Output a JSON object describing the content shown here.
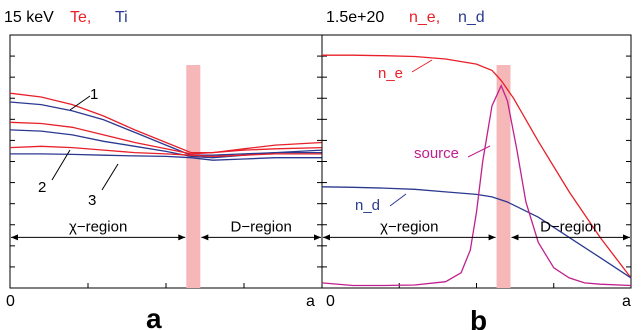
{
  "colors": {
    "te": "#e8202a",
    "ti": "#2b3990",
    "source": "#c0208f",
    "band": "#f5b7b7",
    "axis": "#000000"
  },
  "chart_data": [
    {
      "panel": "a",
      "type": "line",
      "header": {
        "scale": "15 keV",
        "te": "Te,",
        "ti": "Ti"
      },
      "x_ticks": [
        "0",
        "a"
      ],
      "xlim": [
        0,
        1
      ],
      "ylim": [
        0,
        1
      ],
      "band": [
        0.565,
        0.61
      ],
      "regions": {
        "left": "χ−region",
        "right": "D−region",
        "y": 0.2
      },
      "curve_labels": [
        "1",
        "2",
        "3"
      ],
      "series": [
        {
          "key": "Te",
          "color": "te",
          "x": [
            0,
            0.1,
            0.2,
            0.3,
            0.4,
            0.5,
            0.58,
            0.65,
            0.75,
            0.85,
            1.0
          ],
          "y": [
            0.77,
            0.755,
            0.725,
            0.68,
            0.625,
            0.575,
            0.535,
            0.535,
            0.545,
            0.55,
            0.555
          ]
        },
        {
          "key": "Ti",
          "color": "ti",
          "x": [
            0,
            0.1,
            0.2,
            0.3,
            0.4,
            0.5,
            0.58,
            0.65,
            0.75,
            0.85,
            1.0
          ],
          "y": [
            0.735,
            0.725,
            0.7,
            0.665,
            0.615,
            0.565,
            0.525,
            0.525,
            0.53,
            0.535,
            0.535
          ]
        },
        {
          "key": "Te",
          "color": "te",
          "x": [
            0,
            0.1,
            0.2,
            0.3,
            0.4,
            0.5,
            0.58,
            0.65,
            0.75,
            0.85,
            1.0
          ],
          "y": [
            0.655,
            0.65,
            0.635,
            0.605,
            0.575,
            0.55,
            0.53,
            0.535,
            0.55,
            0.565,
            0.575
          ]
        },
        {
          "key": "Ti",
          "color": "ti",
          "x": [
            0,
            0.1,
            0.2,
            0.3,
            0.4,
            0.5,
            0.58,
            0.65,
            0.75,
            0.85,
            1.0
          ],
          "y": [
            0.625,
            0.62,
            0.605,
            0.58,
            0.56,
            0.54,
            0.52,
            0.515,
            0.525,
            0.535,
            0.545
          ]
        },
        {
          "key": "Te",
          "color": "te",
          "x": [
            0,
            0.1,
            0.2,
            0.3,
            0.4,
            0.5,
            0.58,
            0.65,
            0.75,
            0.85,
            1.0
          ],
          "y": [
            0.555,
            0.56,
            0.555,
            0.545,
            0.535,
            0.53,
            0.525,
            0.52,
            0.525,
            0.53,
            0.53
          ]
        },
        {
          "key": "Ti",
          "color": "ti",
          "x": [
            0,
            0.1,
            0.2,
            0.3,
            0.4,
            0.5,
            0.58,
            0.65,
            0.75,
            0.85,
            1.0
          ],
          "y": [
            0.53,
            0.53,
            0.528,
            0.525,
            0.522,
            0.52,
            0.515,
            0.505,
            0.51,
            0.515,
            0.515
          ]
        }
      ]
    },
    {
      "panel": "b",
      "type": "line",
      "header": {
        "scale": "1.5e+20",
        "ne": "n_e,",
        "nd": "n_d"
      },
      "x_ticks": [
        "0",
        "a"
      ],
      "xlim": [
        0,
        1
      ],
      "ylim": [
        0,
        1
      ],
      "band": [
        0.565,
        0.61
      ],
      "regions": {
        "left": "χ−region",
        "right": "D−region",
        "y": 0.2
      },
      "curve_labels": {
        "ne": "n_e",
        "nd": "n_d",
        "source": "source"
      },
      "series": [
        {
          "key": "n_e",
          "color": "te",
          "x": [
            0,
            0.1,
            0.2,
            0.3,
            0.4,
            0.5,
            0.55,
            0.58,
            0.62,
            0.7,
            0.8,
            0.9,
            1.0
          ],
          "y": [
            0.92,
            0.92,
            0.918,
            0.915,
            0.905,
            0.885,
            0.86,
            0.82,
            0.75,
            0.58,
            0.38,
            0.2,
            0.04
          ]
        },
        {
          "key": "n_d",
          "color": "ti",
          "x": [
            0,
            0.1,
            0.2,
            0.3,
            0.4,
            0.5,
            0.55,
            0.6,
            0.7,
            0.8,
            0.9,
            1.0
          ],
          "y": [
            0.4,
            0.398,
            0.395,
            0.39,
            0.38,
            0.37,
            0.36,
            0.34,
            0.28,
            0.2,
            0.12,
            0.04
          ]
        },
        {
          "key": "source",
          "color": "source",
          "x": [
            0,
            0.1,
            0.2,
            0.3,
            0.4,
            0.45,
            0.48,
            0.5,
            0.52,
            0.55,
            0.58,
            0.6,
            0.63,
            0.66,
            0.7,
            0.75,
            0.8,
            0.85,
            0.9,
            1.0
          ],
          "y": [
            0.02,
            0.01,
            0.01,
            0.012,
            0.025,
            0.06,
            0.15,
            0.3,
            0.5,
            0.72,
            0.8,
            0.74,
            0.55,
            0.34,
            0.18,
            0.08,
            0.04,
            0.02,
            0.015,
            0.01
          ]
        }
      ]
    }
  ]
}
